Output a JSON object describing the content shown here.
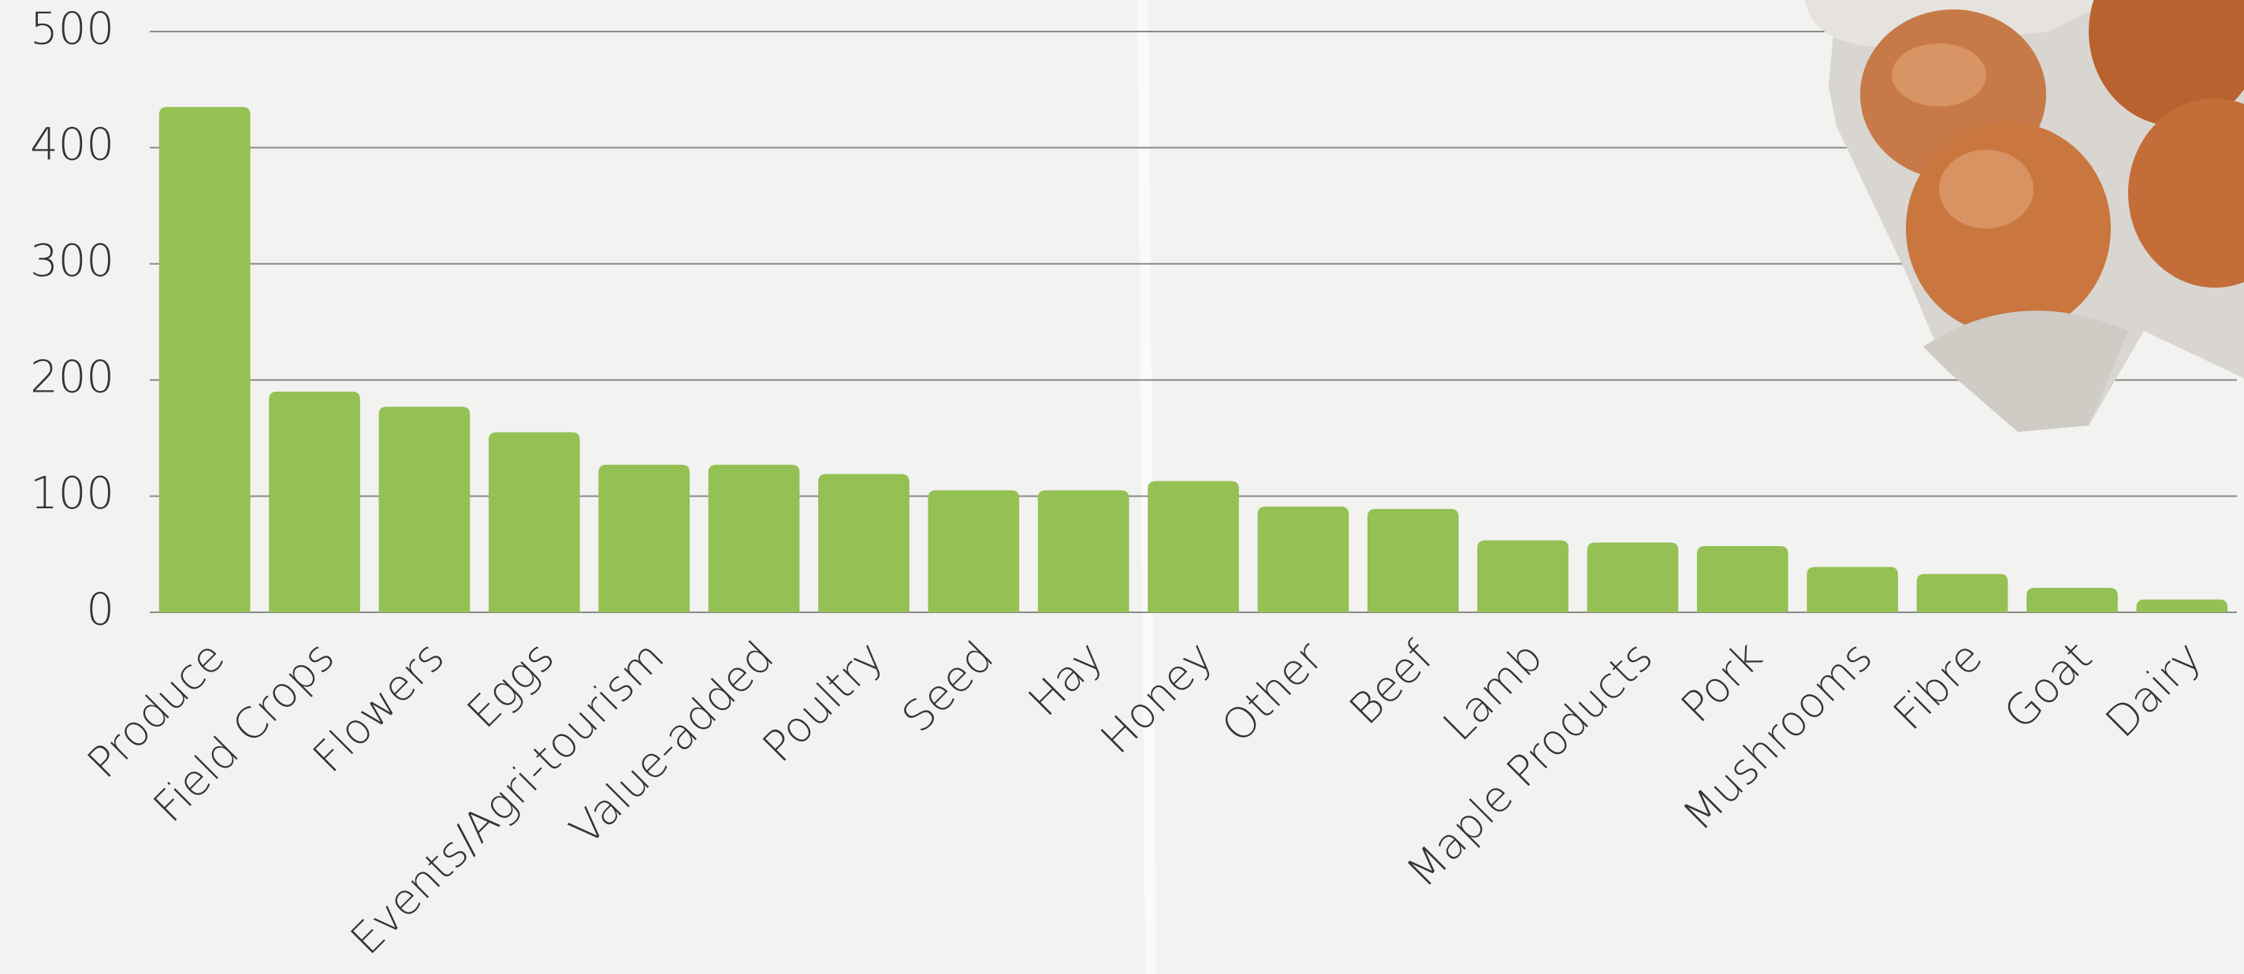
{
  "chart_data": {
    "type": "bar",
    "categories": [
      "Produce",
      "Field Crops",
      "Flowers",
      "Eggs",
      "Events/Agri-tourism",
      "Value-added",
      "Poultry",
      "Seed",
      "Hay",
      "Honey",
      "Other",
      "Beef",
      "Lamb",
      "Maple Products",
      "Pork",
      "Mushrooms",
      "Fibre",
      "Goat",
      "Dairy"
    ],
    "values": [
      435,
      190,
      177,
      155,
      127,
      127,
      119,
      105,
      105,
      113,
      91,
      89,
      62,
      60,
      57,
      39,
      33,
      21,
      11
    ],
    "color": "#94c054",
    "ylim": [
      0,
      500
    ],
    "yticks": [
      0,
      100,
      200,
      300,
      400,
      500
    ],
    "grid": true
  }
}
